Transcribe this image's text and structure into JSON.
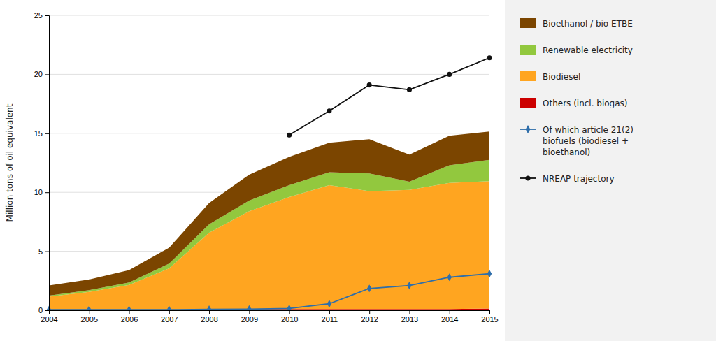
{
  "chart_data": {
    "type": "area",
    "stacked": true,
    "x": [
      2004,
      2005,
      2006,
      2007,
      2008,
      2009,
      2010,
      2011,
      2012,
      2013,
      2014,
      2015
    ],
    "xlim": [
      2004,
      2015
    ],
    "xticks": [
      2004,
      2005,
      2006,
      2007,
      2008,
      2009,
      2010,
      2011,
      2012,
      2013,
      2014,
      2015
    ],
    "ylim": [
      0,
      25
    ],
    "yticks": [
      0,
      5,
      10,
      15,
      20,
      25
    ],
    "ylabel": "Million tons of oil equivalent",
    "grid": true,
    "legend": "right",
    "series": [
      {
        "name": "Others (incl. biogas)",
        "type": "area",
        "color": "#CC0000",
        "values": [
          0.05,
          0.05,
          0.05,
          0.05,
          0.08,
          0.1,
          0.1,
          0.1,
          0.1,
          0.1,
          0.1,
          0.15
        ]
      },
      {
        "name": "Biodiesel",
        "type": "area",
        "color": "#FFA520",
        "values": [
          1.1,
          1.5,
          2.1,
          3.5,
          6.5,
          8.3,
          9.5,
          10.5,
          10.0,
          10.1,
          10.7,
          10.8
        ]
      },
      {
        "name": "Renewable electricity",
        "type": "area",
        "color": "#92C83E",
        "values": [
          0.1,
          0.15,
          0.2,
          0.4,
          0.7,
          0.9,
          1.0,
          1.1,
          1.5,
          0.7,
          1.5,
          1.8
        ]
      },
      {
        "name": "Bioethanol / bio ETBE",
        "type": "area",
        "color": "#7B4500",
        "values": [
          0.85,
          0.9,
          1.05,
          1.35,
          1.82,
          2.2,
          2.4,
          2.5,
          2.9,
          2.3,
          2.5,
          2.4
        ]
      },
      {
        "name": "Of which article 21(2)\nbiofuels (biodiesel +\nbioethanol)",
        "type": "line",
        "color": "#2E6EAA",
        "marker": "diamond",
        "values": [
          0.05,
          0.05,
          0.05,
          0.05,
          0.08,
          0.1,
          0.15,
          0.55,
          1.85,
          2.1,
          2.8,
          3.1
        ]
      },
      {
        "name": "NREAP trajectory",
        "type": "line",
        "color": "#111111",
        "marker": "circle",
        "values": [
          null,
          null,
          null,
          null,
          null,
          null,
          14.85,
          16.9,
          19.1,
          18.7,
          20.0,
          21.4
        ]
      }
    ]
  }
}
